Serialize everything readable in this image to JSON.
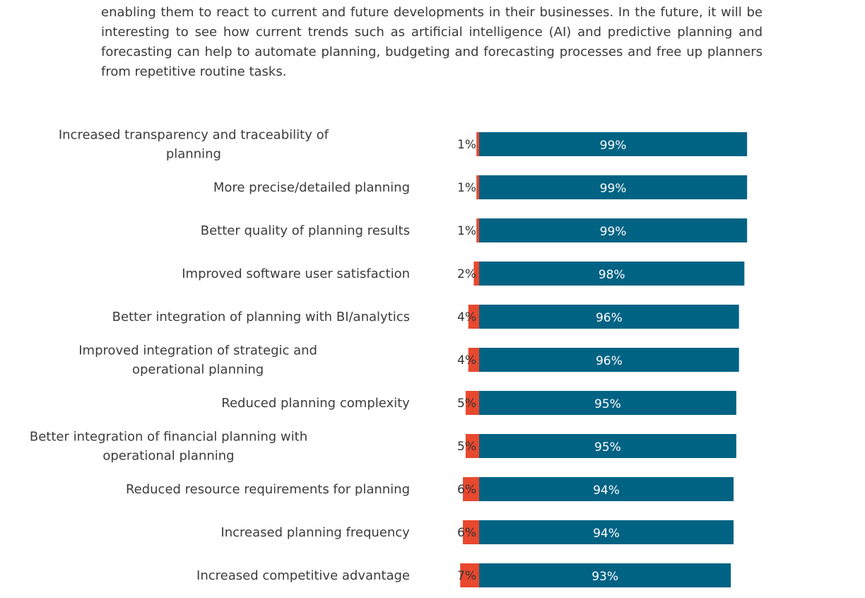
{
  "intro_text": "enabling them to react to current and future developments in their businesses. In the future, it will be interesting to see how current trends such as artificial intelligence (AI) and predictive planning and forecasting can help to automate planning, budgeting and forecasting processes and free up planners from repetitive routine tasks.",
  "colors": {
    "positive": "#006384",
    "negative": "#e8482e"
  },
  "chart_data": {
    "type": "bar",
    "orientation": "horizontal-stacked",
    "xlim": [
      0,
      100
    ],
    "categories": [
      [
        "Increased transparency and traceability of",
        "planning"
      ],
      [
        "More precise/detailed planning"
      ],
      [
        "Better quality of planning results"
      ],
      [
        "Improved software user satisfaction"
      ],
      [
        "Better integration of planning with BI/analytics"
      ],
      [
        "Improved integration of strategic and",
        "operational planning"
      ],
      [
        "Reduced planning complexity"
      ],
      [
        "Better integration of financial planning with",
        "operational planning"
      ],
      [
        "Reduced resource requirements for planning"
      ],
      [
        "Increased planning frequency"
      ],
      [
        "Increased competitive advantage"
      ]
    ],
    "series": [
      {
        "values": [
          1,
          1,
          1,
          2,
          4,
          4,
          5,
          5,
          6,
          6,
          7
        ],
        "labels": [
          "1%",
          "1%",
          "1%",
          "2%",
          "4%",
          "4%",
          "5%",
          "5%",
          "6%",
          "6%",
          "7%"
        ]
      },
      {
        "values": [
          99,
          99,
          99,
          98,
          96,
          96,
          95,
          95,
          94,
          94,
          93
        ],
        "labels": [
          "99%",
          "99%",
          "99%",
          "98%",
          "96%",
          "96%",
          "95%",
          "95%",
          "94%",
          "94%",
          "93%"
        ]
      }
    ]
  }
}
